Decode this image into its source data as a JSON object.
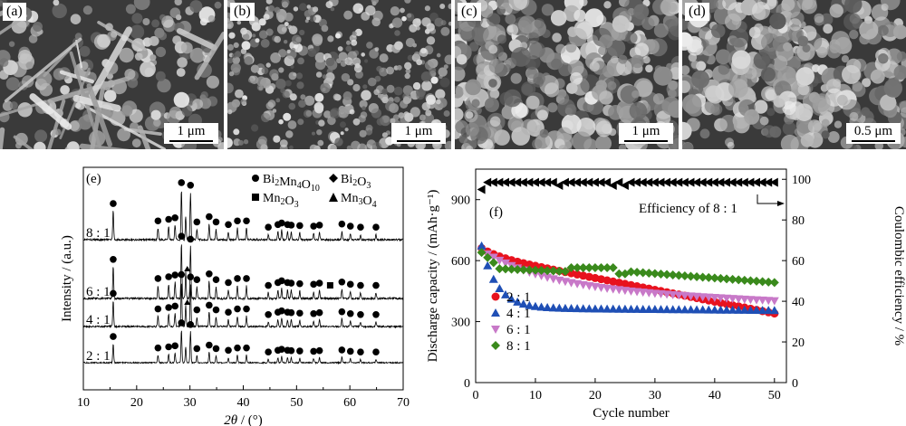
{
  "sem_panels": [
    {
      "label": "(a)",
      "scale": "1 μm"
    },
    {
      "label": "(b)",
      "scale": "1 μm"
    },
    {
      "label": "(c)",
      "scale": "1 μm"
    },
    {
      "label": "(d)",
      "scale": "0.5 μm"
    }
  ],
  "chart_data": [
    {
      "type": "line",
      "panel_label": "(e)",
      "xlabel_italic": "2θ",
      "xlabel_rest": " / (°)",
      "ylabel": "Intensity / (a.u.)",
      "xlim": [
        10,
        70
      ],
      "xticks": [
        10,
        20,
        30,
        40,
        50,
        60,
        70
      ],
      "series": [
        {
          "name": "8 : 1",
          "label": "8 : 1"
        },
        {
          "name": "6 : 1",
          "label": "6 : 1"
        },
        {
          "name": "4 : 1",
          "label": "4 : 1"
        },
        {
          "name": "2 : 1",
          "label": "2 : 1"
        }
      ],
      "peaks": [
        {
          "x": 15.6,
          "h": 0.55
        },
        {
          "x": 24.0,
          "h": 0.22
        },
        {
          "x": 26.0,
          "h": 0.25
        },
        {
          "x": 27.2,
          "h": 0.28
        },
        {
          "x": 28.4,
          "h": 0.95
        },
        {
          "x": 29.2,
          "h": 0.45
        },
        {
          "x": 30.1,
          "h": 0.9
        },
        {
          "x": 31.3,
          "h": 0.2
        },
        {
          "x": 33.6,
          "h": 0.3
        },
        {
          "x": 34.9,
          "h": 0.2
        },
        {
          "x": 37.2,
          "h": 0.15
        },
        {
          "x": 38.9,
          "h": 0.22
        },
        {
          "x": 40.6,
          "h": 0.22
        },
        {
          "x": 44.7,
          "h": 0.1
        },
        {
          "x": 46.5,
          "h": 0.15
        },
        {
          "x": 47.2,
          "h": 0.18
        },
        {
          "x": 48.3,
          "h": 0.15
        },
        {
          "x": 49.0,
          "h": 0.14
        },
        {
          "x": 50.6,
          "h": 0.13
        },
        {
          "x": 53.2,
          "h": 0.12
        },
        {
          "x": 54.3,
          "h": 0.14
        },
        {
          "x": 58.5,
          "h": 0.16
        },
        {
          "x": 60.1,
          "h": 0.12
        },
        {
          "x": 62.0,
          "h": 0.1
        },
        {
          "x": 64.9,
          "h": 0.1
        }
      ],
      "marker_x": [
        15.6,
        24.0,
        26.0,
        27.2,
        28.4,
        30.1,
        31.3,
        33.6,
        34.9,
        37.2,
        38.9,
        40.6,
        44.7,
        46.5,
        47.2,
        48.3,
        49.0,
        50.6,
        53.2,
        54.3,
        58.5,
        60.1,
        62.0,
        64.9
      ],
      "legend": [
        {
          "symbol": "circle",
          "text": "Bi2Mn4O10",
          "main": "Bi",
          "sub1": "2",
          "mid": "Mn",
          "sub2": "4",
          "mid2": "O",
          "sub3": "10"
        },
        {
          "symbol": "diamond",
          "text": "Bi2O3",
          "main": "Bi",
          "sub1": "2",
          "mid": "O",
          "sub2": "3"
        },
        {
          "symbol": "square",
          "text": "Mn2O3",
          "main": "Mn",
          "sub1": "2",
          "mid": "O",
          "sub2": "3"
        },
        {
          "symbol": "triangle",
          "text": "Mn3O4",
          "main": "Mn",
          "sub1": "3",
          "mid": "O",
          "sub2": "4"
        }
      ]
    },
    {
      "type": "scatter",
      "panel_label": "(f)",
      "xlabel": "Cycle number",
      "ylabel_left": "Discharge capacity / (mAh·g⁻¹)",
      "ylabel_right": "Coulombic efficiency / %",
      "xlim": [
        0,
        52
      ],
      "ylim_left": [
        0,
        1050
      ],
      "ylim_right": [
        0,
        105
      ],
      "xticks": [
        0,
        10,
        20,
        30,
        40,
        50
      ],
      "yticks_left": [
        0,
        300,
        600,
        900
      ],
      "yticks_right": [
        0,
        20,
        40,
        60,
        80,
        100
      ],
      "annotation": "Efficiency of 8 : 1",
      "series": [
        {
          "name": "2 : 1",
          "color": "#e8121e",
          "marker": "circle",
          "start": 675,
          "end": 340,
          "shape": "linear_decay"
        },
        {
          "name": "4 : 1",
          "color": "#1f4fb5",
          "marker": "triangle",
          "start": 660,
          "end": 355,
          "shape": "fast_drop"
        },
        {
          "name": "6 : 1",
          "color": "#c879c8",
          "marker": "triangle-down",
          "start": 650,
          "end": 400,
          "shape": "decay"
        },
        {
          "name": "8 : 1",
          "color": "#3a8a1c",
          "marker": "diamond",
          "start": 640,
          "end": 490,
          "shape": "plateau"
        }
      ],
      "efficiency": {
        "first": 95,
        "rest": 98.5,
        "dips": [
          14,
          23,
          25
        ]
      }
    }
  ]
}
